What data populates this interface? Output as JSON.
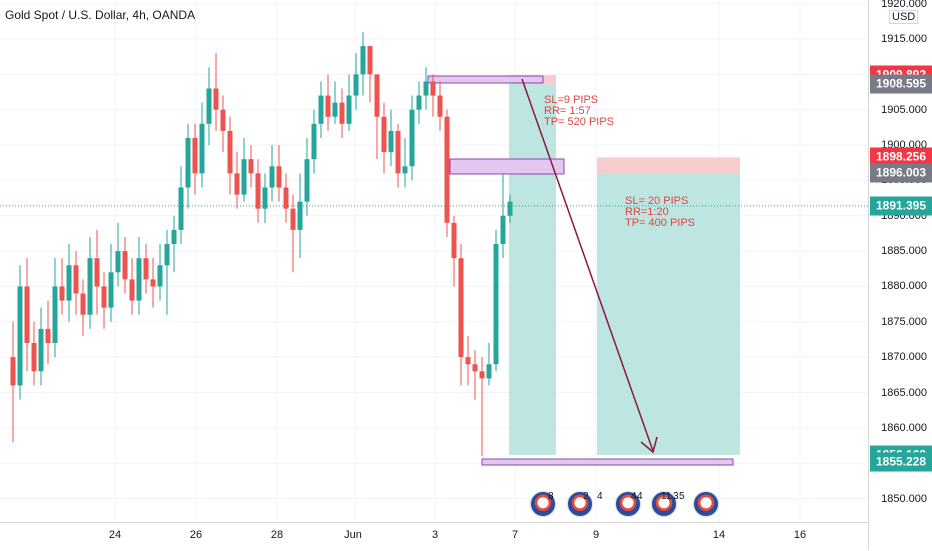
{
  "symbol": {
    "title": "Gold Spot / U.S. Dollar, 4h, OANDA"
  },
  "currency": "USD",
  "price_ticks": [
    "1920.000",
    "1915.000",
    "1910.000",
    "1905.000",
    "1900.000",
    "1895.000",
    "1890.000",
    "1885.000",
    "1880.000",
    "1875.000",
    "1870.000",
    "1865.000",
    "1860.000",
    "1855.000",
    "1850.000"
  ],
  "price_badges": [
    {
      "label": "1909.892",
      "price": 1909.892,
      "color": "#f23645"
    },
    {
      "label": "1908.595",
      "price": 1908.595,
      "color": "#787b86"
    },
    {
      "label": "1898.256",
      "price": 1898.256,
      "color": "#f23645"
    },
    {
      "label": "1896.003",
      "price": 1896.003,
      "color": "#787b86"
    },
    {
      "label": "1891.395",
      "price": 1891.395,
      "color": "#26a69a"
    },
    {
      "label": "1856.169",
      "price": 1856.169,
      "color": "#26a69a"
    },
    {
      "label": "1855.228",
      "price": 1855.228,
      "color": "#26a69a"
    }
  ],
  "time_labels": [
    "24",
    "26",
    "28",
    "Jun",
    "3",
    "7",
    "9",
    "14",
    "16"
  ],
  "annotations": [
    {
      "text": "SL=9 PIPS\nRR= 1:57\nTP= 520 PIPS"
    },
    {
      "text": "SL= 20 PIPS\nRR=1:20\nTP= 400 PIPS"
    }
  ],
  "event_counts": [
    "8",
    "2",
    "4",
    "4",
    "4",
    "11",
    "3",
    "5"
  ],
  "colors": {
    "up": "#26a69a",
    "down": "#ef5350",
    "target": "#b2e0dc",
    "stop": "#f7c6c6",
    "zone": "#c39bd3",
    "arrow": "#8b1a3a"
  }
}
